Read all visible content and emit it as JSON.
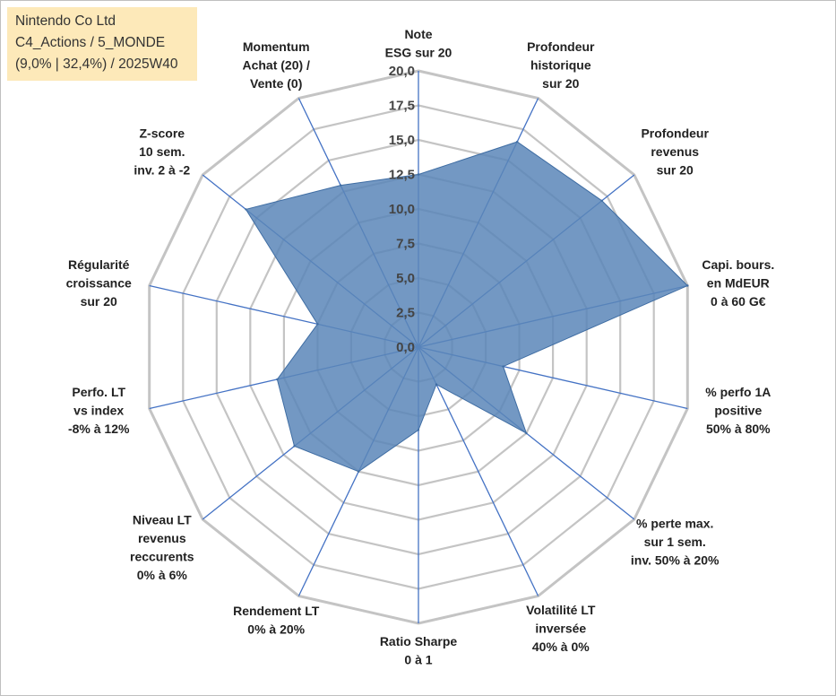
{
  "info_box": {
    "line1": "Nintendo Co Ltd",
    "line2": "C4_Actions / 5_MONDE",
    "line3": "(9,0% | 32,4%) / 2025W40"
  },
  "colors": {
    "fill": "#5b86b9",
    "fill_opacity": "0.85",
    "stroke": "#3f6da3",
    "spoke": "#4472c4",
    "grid": "#c4c4c4"
  },
  "chart_data": {
    "type": "radar",
    "title": "",
    "rmin": 0,
    "rmax": 20,
    "tick_step": 2.5,
    "tick_labels": [
      "0,0",
      "2,5",
      "5,0",
      "7,5",
      "10,0",
      "12,5",
      "15,0",
      "17,5",
      "20,0"
    ],
    "axes": [
      {
        "label": [
          "Note",
          "ESG sur 20"
        ],
        "value": 12.5
      },
      {
        "label": [
          "Profondeur",
          "historique",
          "sur 20"
        ],
        "value": 16.5
      },
      {
        "label": [
          "Profondeur",
          "revenus",
          "sur 20"
        ],
        "value": 17.0
      },
      {
        "label": [
          "Capi. bours.",
          "en MdEUR",
          "0 à 60 G€"
        ],
        "value": 20.0
      },
      {
        "label": [
          "% perfo 1A",
          "positive",
          "50% à 80%"
        ],
        "value": 6.3
      },
      {
        "label": [
          "% perte max.",
          "sur 1 sem.",
          "inv. 50% à 20%"
        ],
        "value": 10.0
      },
      {
        "label": [
          "Volatilité LT",
          "inversée",
          "40% à 0%"
        ],
        "value": 3.0
      },
      {
        "label": [
          "Ratio Sharpe",
          "0 à 1"
        ],
        "value": 6.0
      },
      {
        "label": [
          "Rendement LT",
          "0% à 20%"
        ],
        "value": 10.0
      },
      {
        "label": [
          "Niveau LT",
          "revenus",
          "reccurents",
          "0% à 6%"
        ],
        "value": 11.5
      },
      {
        "label": [
          "Perfo. LT",
          "vs index",
          "-8% à 12%"
        ],
        "value": 10.5
      },
      {
        "label": [
          "Régularité",
          "croissance",
          "sur 20"
        ],
        "value": 7.5
      },
      {
        "label": [
          "Z-score",
          "10 sem.",
          "inv. 2 à -2"
        ],
        "value": 16.0
      },
      {
        "label": [
          "Momentum",
          "Achat (20) /",
          "Vente (0)"
        ],
        "value": 13.0
      }
    ]
  }
}
